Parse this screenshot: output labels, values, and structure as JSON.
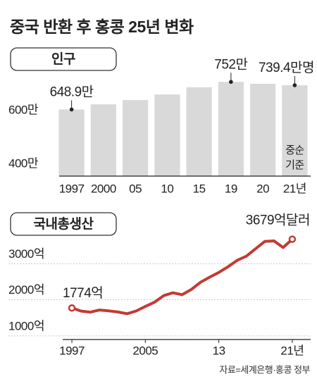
{
  "title": "중국 반환 후 홍콩 25년 변화",
  "source": "자료=세계은행·홍콩 정부",
  "chart_data": [
    {
      "type": "bar",
      "title": "인구",
      "categories": [
        "1997",
        "2000",
        "05",
        "10",
        "15",
        "19",
        "20",
        "21년"
      ],
      "values": [
        648.9,
        668,
        684,
        705,
        732,
        752,
        745,
        739.4
      ],
      "value_labels": [
        "648.9만",
        null,
        null,
        null,
        null,
        "752만",
        null,
        "739.4만명"
      ],
      "note": [
        "중순",
        "기준"
      ],
      "color": "#d9d9d9",
      "ylim": [
        400,
        800
      ],
      "yticks": [
        {
          "value": 400,
          "label": "400만"
        },
        {
          "value": 600,
          "label": "600만"
        }
      ],
      "grid": false
    },
    {
      "type": "line",
      "title": "국내총생산",
      "x": [
        1997,
        1998,
        1999,
        2000,
        2001,
        2002,
        2003,
        2004,
        2005,
        2006,
        2007,
        2008,
        2009,
        2010,
        2011,
        2012,
        2013,
        2014,
        2015,
        2016,
        2017,
        2018,
        2019,
        2020,
        2021
      ],
      "values": [
        1774,
        1689,
        1658,
        1717,
        1694,
        1663,
        1614,
        1691,
        1816,
        1935,
        2116,
        2193,
        2140,
        2286,
        2485,
        2626,
        2757,
        2915,
        3094,
        3209,
        3413,
        3617,
        3631,
        3449,
        3679
      ],
      "value_labels": [
        "1774억",
        null,
        null,
        null,
        null,
        null,
        null,
        null,
        null,
        null,
        null,
        null,
        null,
        null,
        null,
        null,
        null,
        null,
        null,
        null,
        null,
        null,
        null,
        null,
        "3679억달러"
      ],
      "color": "#c23b32",
      "xlim": [
        1996,
        2023
      ],
      "xticks": [
        1997,
        2005,
        {
          "value": 2013,
          "label": "13"
        },
        {
          "value": 2021,
          "label": "21년"
        }
      ],
      "ylim": [
        900,
        4100
      ],
      "yticks": [
        {
          "value": 1000,
          "label": "1000억"
        },
        {
          "value": 2000,
          "label": "2000억"
        },
        {
          "value": 3000,
          "label": "3000억"
        }
      ],
      "grid": true
    }
  ]
}
